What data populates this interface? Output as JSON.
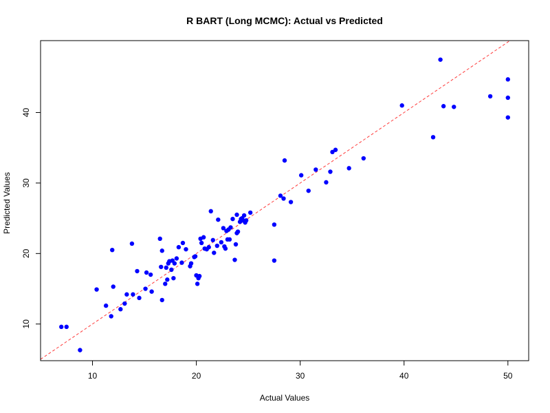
{
  "chart_data": {
    "type": "scatter",
    "title": "R BART (Long MCMC): Actual vs Predicted",
    "xlabel": "Actual Values",
    "ylabel": "Predicted Values",
    "xlim": [
      5,
      52
    ],
    "ylim": [
      4.8,
      50.2
    ],
    "x_ticks": [
      10,
      20,
      30,
      40,
      50
    ],
    "y_ticks": [
      10,
      20,
      30,
      40
    ],
    "grid": false,
    "legend": "none",
    "point_color": "#0000ff",
    "reference_line": {
      "slope": 1,
      "intercept": 0,
      "color": "#ff3b3b",
      "style": "dashed"
    },
    "points": [
      [
        7.0,
        9.6
      ],
      [
        7.5,
        9.6
      ],
      [
        8.8,
        6.3
      ],
      [
        10.4,
        14.9
      ],
      [
        11.3,
        12.6
      ],
      [
        11.8,
        11.1
      ],
      [
        11.9,
        20.5
      ],
      [
        12.0,
        15.3
      ],
      [
        12.7,
        12.1
      ],
      [
        13.1,
        12.9
      ],
      [
        13.3,
        14.2
      ],
      [
        13.8,
        21.4
      ],
      [
        13.9,
        14.2
      ],
      [
        14.3,
        17.5
      ],
      [
        14.5,
        13.7
      ],
      [
        15.1,
        15.0
      ],
      [
        15.2,
        17.3
      ],
      [
        15.6,
        17.0
      ],
      [
        15.7,
        14.6
      ],
      [
        16.5,
        22.1
      ],
      [
        16.7,
        20.4
      ],
      [
        16.7,
        13.4
      ],
      [
        16.6,
        18.1
      ],
      [
        17.0,
        15.7
      ],
      [
        17.1,
        18.0
      ],
      [
        17.2,
        16.3
      ],
      [
        17.3,
        18.6
      ],
      [
        17.4,
        18.9
      ],
      [
        17.6,
        17.7
      ],
      [
        17.7,
        19.0
      ],
      [
        17.8,
        16.5
      ],
      [
        17.9,
        18.6
      ],
      [
        18.1,
        19.3
      ],
      [
        18.3,
        20.9
      ],
      [
        18.6,
        18.7
      ],
      [
        18.7,
        21.5
      ],
      [
        19.0,
        20.6
      ],
      [
        19.4,
        18.2
      ],
      [
        19.5,
        18.6
      ],
      [
        19.8,
        19.5
      ],
      [
        19.9,
        19.6
      ],
      [
        20.0,
        16.9
      ],
      [
        20.1,
        15.7
      ],
      [
        20.2,
        16.5
      ],
      [
        20.3,
        16.8
      ],
      [
        20.4,
        22.1
      ],
      [
        20.5,
        21.5
      ],
      [
        20.7,
        22.3
      ],
      [
        20.8,
        20.7
      ],
      [
        21.0,
        20.6
      ],
      [
        21.2,
        20.9
      ],
      [
        21.4,
        26.0
      ],
      [
        21.6,
        21.9
      ],
      [
        21.7,
        20.1
      ],
      [
        22.0,
        21.1
      ],
      [
        22.1,
        24.8
      ],
      [
        22.4,
        21.6
      ],
      [
        22.6,
        23.6
      ],
      [
        22.7,
        21.0
      ],
      [
        22.8,
        20.7
      ],
      [
        22.9,
        23.2
      ],
      [
        23.0,
        22.0
      ],
      [
        23.1,
        23.4
      ],
      [
        23.2,
        22.0
      ],
      [
        23.3,
        23.7
      ],
      [
        23.5,
        24.9
      ],
      [
        23.7,
        19.1
      ],
      [
        23.8,
        21.3
      ],
      [
        23.9,
        22.9
      ],
      [
        23.9,
        25.5
      ],
      [
        24.0,
        23.1
      ],
      [
        24.2,
        24.5
      ],
      [
        24.3,
        24.9
      ],
      [
        24.4,
        25.0
      ],
      [
        24.5,
        24.7
      ],
      [
        24.6,
        25.4
      ],
      [
        24.7,
        24.4
      ],
      [
        24.8,
        24.7
      ],
      [
        25.2,
        25.8
      ],
      [
        27.5,
        24.1
      ],
      [
        27.5,
        19.0
      ],
      [
        28.1,
        28.2
      ],
      [
        28.4,
        27.8
      ],
      [
        28.5,
        33.2
      ],
      [
        29.1,
        27.3
      ],
      [
        30.1,
        31.1
      ],
      [
        30.8,
        28.9
      ],
      [
        31.5,
        31.9
      ],
      [
        32.5,
        30.1
      ],
      [
        32.9,
        31.6
      ],
      [
        33.1,
        34.4
      ],
      [
        33.4,
        34.7
      ],
      [
        34.7,
        32.1
      ],
      [
        36.1,
        33.5
      ],
      [
        39.8,
        41.0
      ],
      [
        42.8,
        36.5
      ],
      [
        43.5,
        47.5
      ],
      [
        43.8,
        40.9
      ],
      [
        44.8,
        40.8
      ],
      [
        48.3,
        42.3
      ],
      [
        50.0,
        44.7
      ],
      [
        50.0,
        42.1
      ],
      [
        50.0,
        39.3
      ]
    ]
  }
}
